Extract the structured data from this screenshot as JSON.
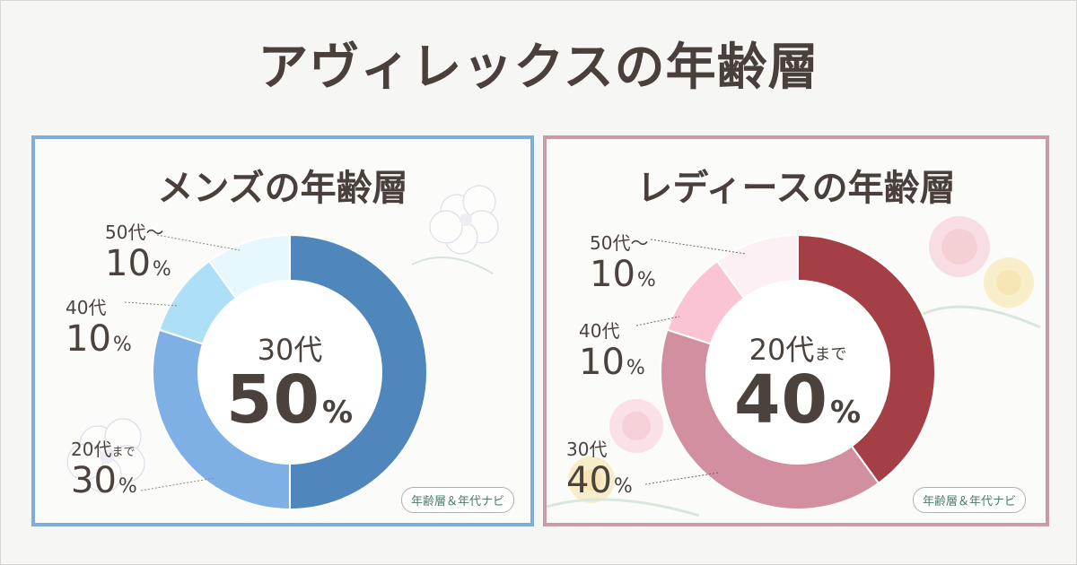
{
  "title": "アヴィレックスの年齢層",
  "badge": "年齢層＆年代ナビ",
  "colors": {
    "men_border": "#7fadd9",
    "women_border": "#c99aa9"
  },
  "chart_data": [
    {
      "type": "pie",
      "title": "メンズの年齢層",
      "start_angle_deg": 0,
      "direction": "clockwise",
      "center": {
        "age": "30代",
        "value": 50,
        "unit": "%"
      },
      "slices": [
        {
          "age": "30代",
          "age_suffix": "",
          "value": 50,
          "unit": "%",
          "color": "#4f86bb"
        },
        {
          "age": "20代",
          "age_suffix": "まで",
          "value": 30,
          "unit": "%",
          "color": "#7eb0e6"
        },
        {
          "age": "40代",
          "age_suffix": "",
          "value": 10,
          "unit": "%",
          "color": "#ade0f6"
        },
        {
          "age": "50代～",
          "age_suffix": "",
          "value": 10,
          "unit": "%",
          "color": "#e7f8fd"
        }
      ]
    },
    {
      "type": "pie",
      "title": "レディースの年齢層",
      "start_angle_deg": 0,
      "direction": "clockwise",
      "center": {
        "age": "20代",
        "age_suffix": "まで",
        "value": 40,
        "unit": "%"
      },
      "slices": [
        {
          "age": "20代",
          "age_suffix": "まで",
          "value": 40,
          "unit": "%",
          "color": "#a33f45"
        },
        {
          "age": "30代",
          "age_suffix": "",
          "value": 40,
          "unit": "%",
          "color": "#d18fa0"
        },
        {
          "age": "40代",
          "age_suffix": "",
          "value": 10,
          "unit": "%",
          "color": "#fbc4d2"
        },
        {
          "age": "50代～",
          "age_suffix": "",
          "value": 10,
          "unit": "%",
          "color": "#fdf0f4"
        }
      ]
    }
  ]
}
